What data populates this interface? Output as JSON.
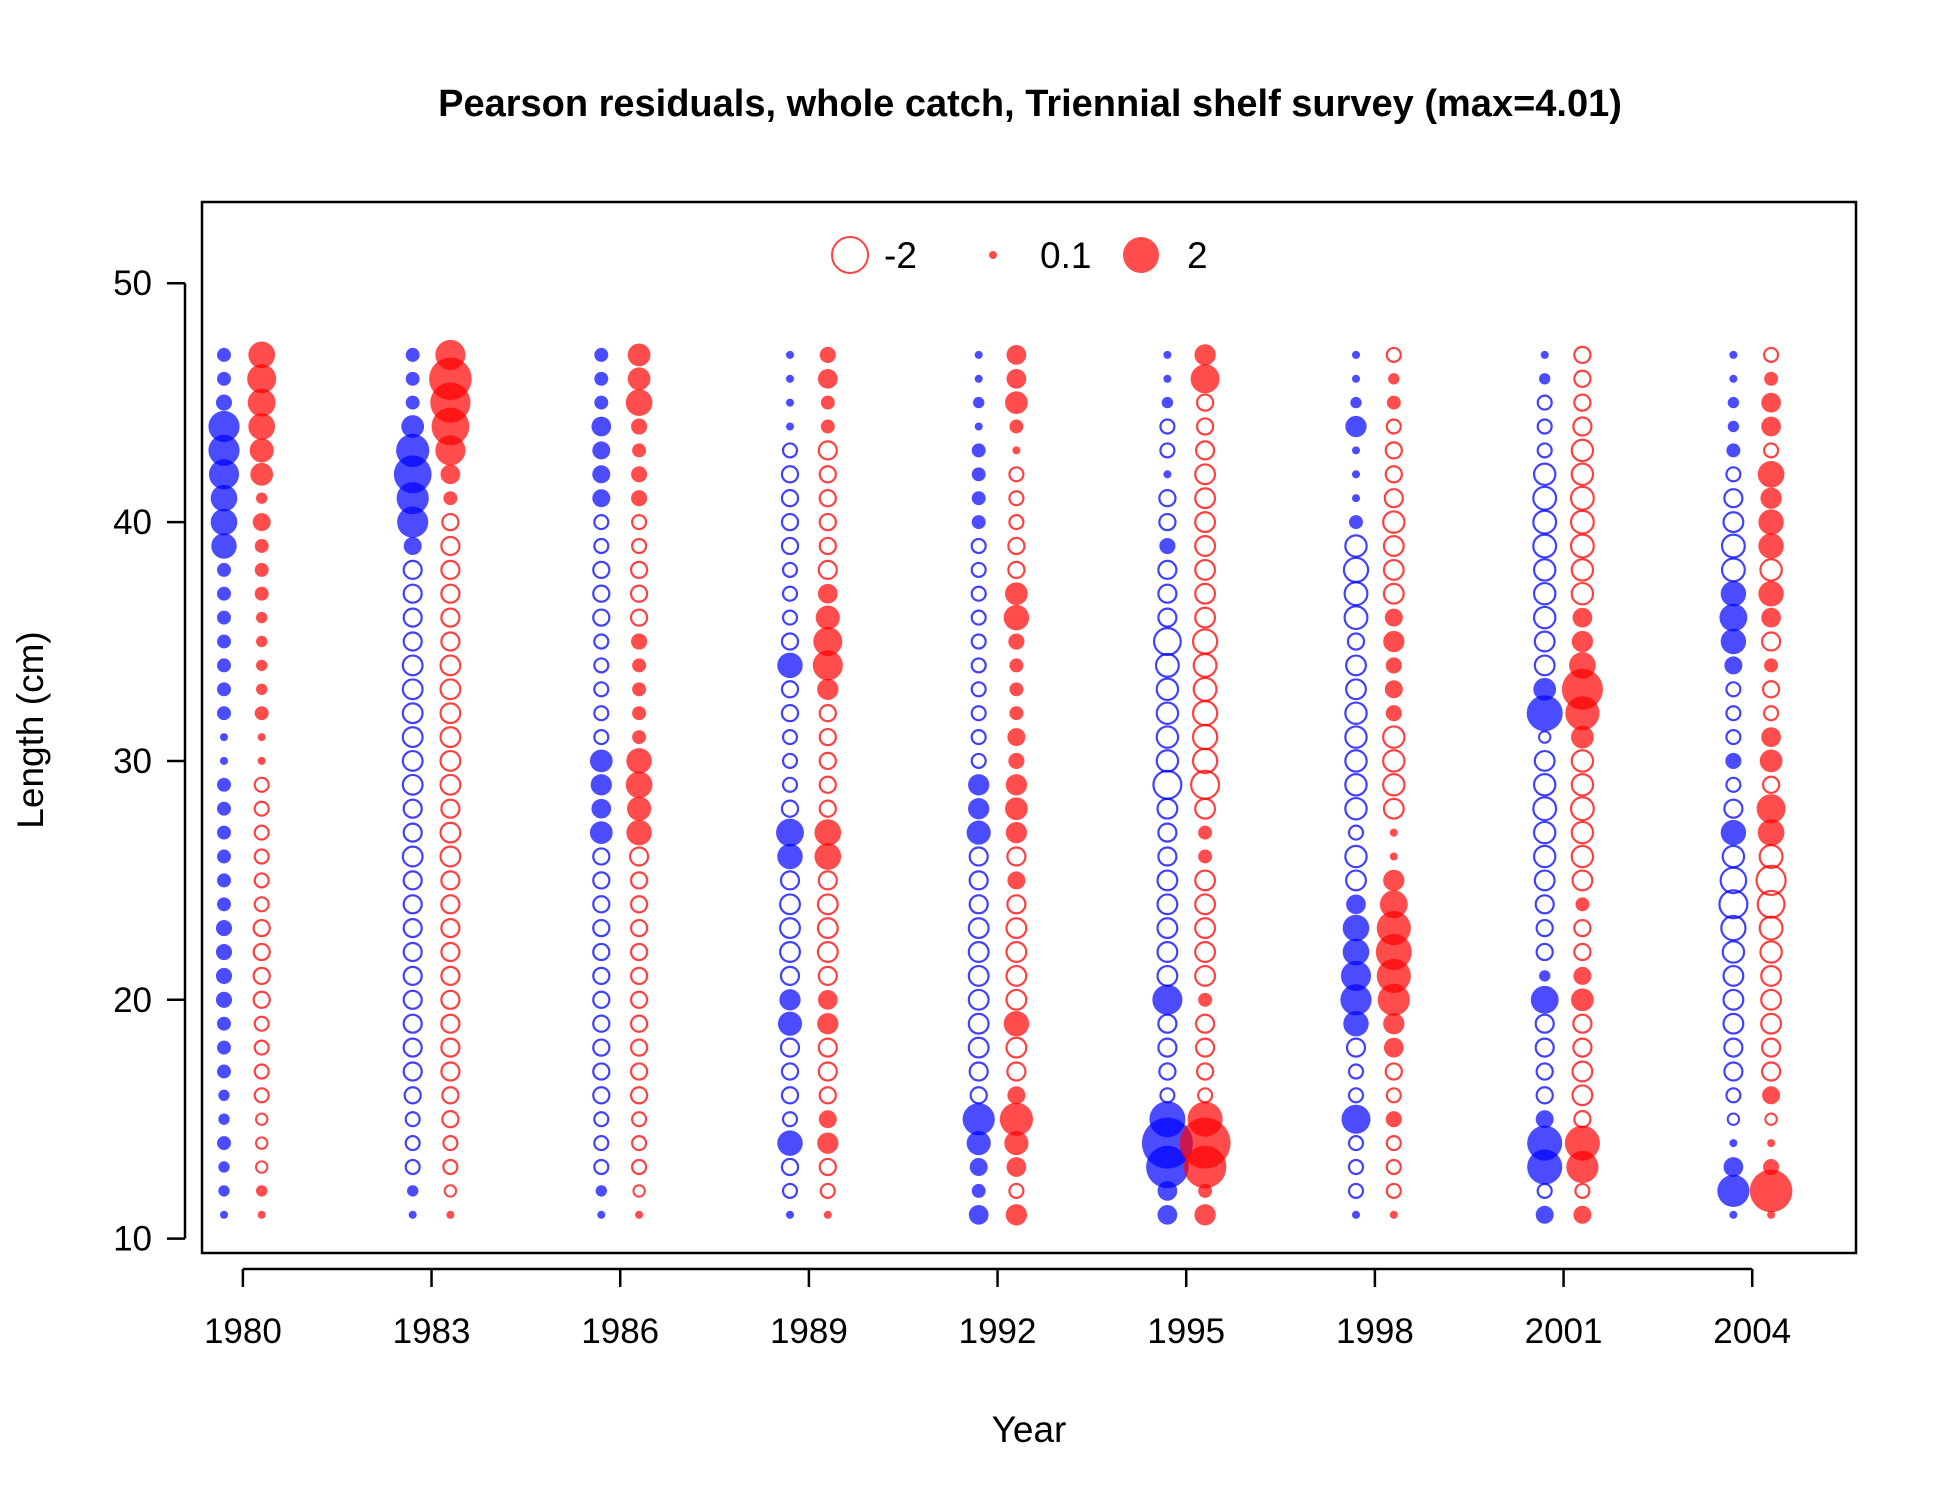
{
  "chart_data": {
    "type": "scatter",
    "subtype": "bubble",
    "title": "Pearson residuals, whole catch, Triennial shelf survey (max=4.01)",
    "xlabel": "Year",
    "ylabel": "Length (cm)",
    "x_ticks": [
      "1980",
      "1983",
      "1986",
      "1989",
      "1992",
      "1995",
      "1998",
      "2001",
      "2004"
    ],
    "y_ticks": [
      "10",
      "20",
      "30",
      "40",
      "50"
    ],
    "xlim": [
      1979.35,
      2005.65
    ],
    "ylim": [
      9.4,
      53.4
    ],
    "grid": false,
    "legend": {
      "placement": "top",
      "items": [
        {
          "label": "-2",
          "value": -2,
          "style": "open"
        },
        {
          "label": "0.1",
          "value": 0.1,
          "style": "filled"
        },
        {
          "label": "2",
          "value": 2,
          "style": "filled"
        }
      ]
    },
    "max_abs_residual": 4.01,
    "open_means_negative": true,
    "lengths": [
      11,
      12,
      13,
      14,
      15,
      16,
      17,
      18,
      19,
      20,
      21,
      22,
      23,
      24,
      25,
      26,
      27,
      28,
      29,
      30,
      31,
      32,
      33,
      34,
      35,
      36,
      37,
      38,
      39,
      40,
      41,
      42,
      43,
      44,
      45,
      46,
      47
    ],
    "series": [
      {
        "name": "",
        "color": "#0000ff",
        "year_offset": -0.3,
        "years": [
          {
            "year": 1980,
            "residuals": [
              0.1,
              0.2,
              0.2,
              0.3,
              0.2,
              0.2,
              0.3,
              0.3,
              0.3,
              0.4,
              0.4,
              0.4,
              0.4,
              0.3,
              0.3,
              0.3,
              0.3,
              0.3,
              0.3,
              0.1,
              0.1,
              0.3,
              0.3,
              0.3,
              0.3,
              0.3,
              0.3,
              0.3,
              1.0,
              1.1,
              1.1,
              1.4,
              1.5,
              1.5,
              0.4,
              0.3,
              0.3
            ]
          },
          {
            "year": 1983,
            "residuals": [
              0.1,
              0.2,
              -0.3,
              -0.3,
              -0.3,
              -0.4,
              -0.5,
              -0.5,
              -0.5,
              -0.5,
              -0.5,
              -0.5,
              -0.5,
              -0.5,
              -0.5,
              -0.6,
              -0.5,
              -0.5,
              -0.6,
              -0.6,
              -0.6,
              -0.6,
              -0.6,
              -0.6,
              -0.5,
              -0.5,
              -0.5,
              -0.5,
              0.5,
              1.5,
              1.6,
              2.2,
              1.7,
              0.8,
              0.3,
              0.3,
              0.3
            ]
          },
          {
            "year": 1986,
            "residuals": [
              0.1,
              0.2,
              -0.3,
              -0.3,
              -0.3,
              -0.4,
              -0.4,
              -0.4,
              -0.4,
              -0.4,
              -0.4,
              -0.4,
              -0.4,
              -0.4,
              -0.4,
              -0.4,
              0.8,
              0.6,
              0.7,
              0.8,
              -0.3,
              -0.3,
              -0.3,
              -0.3,
              -0.3,
              -0.4,
              -0.4,
              -0.4,
              -0.3,
              -0.3,
              0.5,
              0.5,
              0.5,
              0.6,
              0.3,
              0.3,
              0.3
            ]
          },
          {
            "year": 1989,
            "residuals": [
              0.1,
              -0.3,
              -0.4,
              1.0,
              -0.3,
              -0.4,
              -0.4,
              -0.5,
              0.9,
              0.7,
              -0.5,
              -0.6,
              -0.6,
              -0.6,
              -0.5,
              1.0,
              1.2,
              -0.4,
              -0.3,
              -0.3,
              -0.3,
              -0.4,
              -0.4,
              1.0,
              -0.4,
              -0.3,
              -0.3,
              -0.3,
              -0.4,
              -0.4,
              -0.4,
              -0.4,
              -0.3,
              0.1,
              0.1,
              0.1,
              0.1
            ]
          },
          {
            "year": 1992,
            "residuals": [
              0.6,
              0.3,
              0.5,
              0.9,
              1.6,
              -0.4,
              -0.5,
              -0.6,
              -0.6,
              -0.6,
              -0.6,
              -0.6,
              -0.6,
              -0.5,
              -0.5,
              -0.5,
              0.9,
              0.7,
              0.7,
              -0.3,
              -0.3,
              -0.3,
              -0.3,
              -0.3,
              -0.3,
              -0.3,
              -0.3,
              -0.3,
              -0.3,
              0.3,
              0.3,
              0.3,
              0.3,
              0.1,
              0.2,
              0.1,
              0.1
            ]
          },
          {
            "year": 1995,
            "residuals": [
              0.6,
              0.6,
              2.8,
              4.0,
              2.0,
              -0.3,
              -0.4,
              -0.5,
              -0.5,
              1.4,
              -0.6,
              -0.6,
              -0.6,
              -0.6,
              -0.6,
              -0.5,
              -0.5,
              -0.6,
              -1.2,
              -0.7,
              -0.7,
              -0.7,
              -0.7,
              -0.8,
              -1.1,
              -0.5,
              -0.5,
              -0.5,
              0.4,
              -0.4,
              -0.4,
              0.1,
              -0.3,
              -0.3,
              0.2,
              0.1,
              0.1
            ]
          },
          {
            "year": 1998,
            "residuals": [
              0.1,
              -0.3,
              -0.3,
              -0.3,
              1.3,
              -0.3,
              -0.3,
              -0.5,
              1.0,
              1.5,
              1.4,
              1.1,
              1.1,
              0.6,
              -0.6,
              -0.7,
              -0.3,
              -0.7,
              -0.7,
              -0.7,
              -0.7,
              -0.7,
              -0.6,
              -0.6,
              -0.4,
              -0.8,
              -0.8,
              -0.9,
              -0.7,
              0.3,
              0.1,
              0.1,
              0.1,
              0.7,
              0.2,
              0.1,
              0.1
            ]
          },
          {
            "year": 2001,
            "residuals": [
              0.5,
              -0.3,
              1.9,
              1.9,
              0.5,
              -0.4,
              -0.4,
              -0.5,
              -0.5,
              1.2,
              0.2,
              -0.4,
              -0.4,
              -0.5,
              -0.6,
              -0.7,
              -0.7,
              -0.8,
              -0.7,
              -0.6,
              -0.2,
              2.0,
              0.8,
              -0.6,
              -0.6,
              -0.7,
              -0.7,
              -0.7,
              -0.8,
              -0.8,
              -0.8,
              -0.7,
              -0.3,
              -0.3,
              -0.3,
              0.2,
              0.1
            ]
          },
          {
            "year": 2004,
            "residuals": [
              0.1,
              1.6,
              0.6,
              0.1,
              -0.2,
              -0.3,
              -0.5,
              -0.5,
              -0.6,
              -0.6,
              -0.6,
              -0.7,
              -0.9,
              -1.2,
              -1.0,
              -0.7,
              1.0,
              -0.5,
              -0.3,
              0.4,
              -0.3,
              -0.3,
              -0.3,
              0.5,
              1.0,
              1.2,
              1.0,
              -0.8,
              -0.8,
              -0.6,
              -0.5,
              -0.3,
              0.3,
              0.2,
              0.2,
              0.1,
              0.1
            ]
          }
        ]
      },
      {
        "name": "",
        "color": "#ff0000",
        "year_offset": 0.3,
        "years": [
          {
            "year": 1980,
            "residuals": [
              0.1,
              0.2,
              -0.2,
              -0.2,
              -0.2,
              -0.3,
              -0.3,
              -0.3,
              -0.3,
              -0.4,
              -0.4,
              -0.4,
              -0.4,
              -0.3,
              -0.3,
              -0.3,
              -0.3,
              -0.3,
              -0.3,
              0.1,
              0.1,
              0.3,
              0.2,
              0.2,
              0.2,
              0.2,
              0.3,
              0.3,
              0.3,
              0.5,
              0.2,
              0.8,
              0.9,
              1.1,
              1.2,
              1.3,
              1.1
            ]
          },
          {
            "year": 1983,
            "residuals": [
              0.1,
              -0.2,
              -0.3,
              -0.3,
              -0.4,
              -0.4,
              -0.5,
              -0.5,
              -0.5,
              -0.5,
              -0.5,
              -0.5,
              -0.5,
              -0.5,
              -0.5,
              -0.6,
              -0.6,
              -0.5,
              -0.6,
              -0.6,
              -0.6,
              -0.6,
              -0.6,
              -0.6,
              -0.5,
              -0.5,
              -0.5,
              -0.5,
              -0.5,
              -0.4,
              0.3,
              0.6,
              1.4,
              2.2,
              2.5,
              2.8,
              1.4
            ]
          },
          {
            "year": 1986,
            "residuals": [
              0.1,
              -0.2,
              -0.3,
              -0.3,
              -0.3,
              -0.4,
              -0.4,
              -0.4,
              -0.4,
              -0.4,
              -0.4,
              -0.4,
              -0.4,
              -0.4,
              -0.4,
              -0.5,
              1.0,
              0.9,
              1.1,
              1.0,
              0.3,
              0.3,
              0.3,
              0.3,
              0.4,
              -0.4,
              -0.4,
              -0.4,
              -0.3,
              -0.3,
              0.4,
              0.4,
              0.3,
              0.4,
              1.1,
              0.8,
              0.8
            ]
          },
          {
            "year": 1989,
            "residuals": [
              0.1,
              -0.3,
              -0.4,
              0.7,
              0.5,
              -0.4,
              -0.5,
              -0.5,
              0.7,
              0.6,
              -0.5,
              -0.6,
              -0.6,
              -0.6,
              -0.5,
              1.1,
              1.1,
              -0.4,
              -0.4,
              -0.4,
              -0.4,
              -0.4,
              0.7,
              1.4,
              1.3,
              0.9,
              0.6,
              -0.5,
              -0.4,
              -0.4,
              -0.4,
              -0.4,
              -0.5,
              0.3,
              0.3,
              0.6,
              0.4
            ]
          },
          {
            "year": 1992,
            "residuals": [
              0.7,
              -0.3,
              0.6,
              0.9,
              1.7,
              0.5,
              -0.5,
              -0.6,
              1.0,
              -0.6,
              -0.6,
              -0.6,
              -0.6,
              -0.5,
              0.5,
              -0.5,
              0.7,
              0.8,
              0.7,
              0.4,
              0.5,
              0.3,
              0.3,
              0.3,
              0.4,
              1.0,
              0.8,
              -0.4,
              -0.4,
              -0.3,
              -0.3,
              -0.3,
              0.1,
              0.3,
              0.8,
              0.6,
              0.6
            ]
          },
          {
            "year": 1995,
            "residuals": [
              0.7,
              0.3,
              2.8,
              4.0,
              1.9,
              -0.3,
              -0.4,
              -0.5,
              -0.5,
              0.3,
              -0.6,
              -0.6,
              -0.6,
              -0.6,
              -0.6,
              0.3,
              0.3,
              -0.6,
              -1.2,
              -0.9,
              -0.9,
              -0.9,
              -0.8,
              -0.8,
              -0.9,
              -0.6,
              -0.6,
              -0.6,
              -0.6,
              -0.6,
              -0.6,
              -0.6,
              -0.5,
              -0.4,
              -0.4,
              1.3,
              0.7
            ]
          },
          {
            "year": 1998,
            "residuals": [
              0.1,
              -0.3,
              -0.3,
              -0.3,
              0.4,
              -0.3,
              -0.4,
              0.6,
              0.7,
              1.6,
              1.8,
              2.0,
              1.8,
              1.2,
              0.7,
              0.1,
              0.1,
              -0.6,
              -0.7,
              -0.7,
              -0.7,
              0.4,
              0.5,
              0.4,
              0.7,
              0.5,
              -0.6,
              -0.6,
              -0.6,
              -0.7,
              -0.5,
              -0.4,
              -0.4,
              -0.3,
              0.3,
              0.2,
              -0.3
            ]
          },
          {
            "year": 2001,
            "residuals": [
              0.5,
              -0.3,
              1.6,
              1.9,
              -0.4,
              -0.6,
              -0.6,
              -0.5,
              -0.5,
              0.8,
              0.5,
              -0.4,
              -0.4,
              0.3,
              -0.6,
              -0.7,
              -0.7,
              -0.8,
              -0.7,
              -0.7,
              0.8,
              1.8,
              2.6,
              1.1,
              0.7,
              0.6,
              -0.7,
              -0.7,
              -0.8,
              -0.8,
              -0.8,
              -0.7,
              -0.7,
              -0.5,
              -0.4,
              -0.4,
              -0.4
            ]
          },
          {
            "year": 2004,
            "residuals": [
              0.1,
              2.8,
              0.4,
              0.1,
              -0.2,
              0.5,
              -0.5,
              -0.5,
              -0.6,
              -0.6,
              -0.6,
              -0.7,
              -0.8,
              -1.1,
              -1.3,
              -0.8,
              1.1,
              1.3,
              -0.4,
              0.8,
              0.6,
              -0.3,
              -0.4,
              0.3,
              -0.5,
              0.6,
              1.0,
              -0.7,
              1.0,
              1.0,
              0.7,
              1.1,
              -0.3,
              0.6,
              0.6,
              0.3,
              -0.3
            ]
          }
        ]
      }
    ]
  }
}
